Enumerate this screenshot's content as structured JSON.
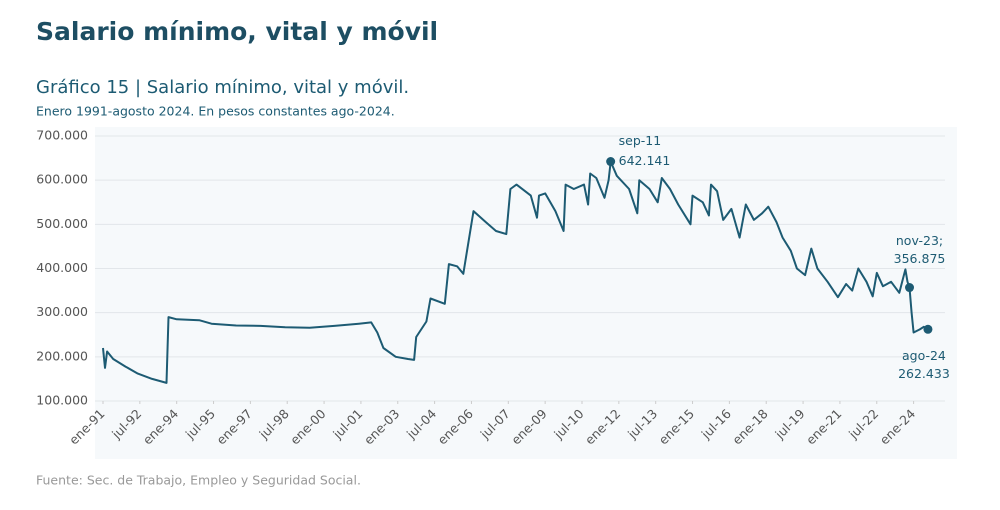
{
  "heading": "Salario mínimo, vital y móvil",
  "chart_data": {
    "type": "line",
    "title": "Gráfico 15 | Salario mínimo, vital y móvil.",
    "subtitle": "Enero 1991-agosto 2024. En pesos constantes ago-2024.",
    "source": "Fuente: Sec. de Trabajo, Empleo y Seguridad Social.",
    "color": "#1d5b73",
    "grid": true,
    "x": [
      "1991-01",
      "1991-02",
      "1991-03",
      "1991-06",
      "1991-12",
      "1992-06",
      "1993-01",
      "1993-08",
      "1993-09",
      "1994-01",
      "1994-12",
      "1995-06",
      "1996-06",
      "1997-06",
      "1998-06",
      "1999-06",
      "2000-06",
      "2001-06",
      "2001-12",
      "2002-03",
      "2002-06",
      "2002-12",
      "2003-06",
      "2003-09",
      "2003-10",
      "2004-03",
      "2004-05",
      "2004-12",
      "2005-02",
      "2005-06",
      "2005-09",
      "2006-02",
      "2006-08",
      "2007-01",
      "2007-06",
      "2007-08",
      "2007-11",
      "2008-06",
      "2008-09",
      "2008-10",
      "2009-01",
      "2009-06",
      "2009-10",
      "2009-11",
      "2010-03",
      "2010-08",
      "2010-10",
      "2010-11",
      "2011-02",
      "2011-06",
      "2011-08",
      "2011-09",
      "2011-12",
      "2012-06",
      "2012-10",
      "2012-11",
      "2013-04",
      "2013-08",
      "2013-10",
      "2014-02",
      "2014-06",
      "2014-12",
      "2015-01",
      "2015-06",
      "2015-09",
      "2015-10",
      "2016-01",
      "2016-04",
      "2016-08",
      "2016-12",
      "2017-03",
      "2017-07",
      "2017-11",
      "2018-02",
      "2018-06",
      "2018-09",
      "2019-01",
      "2019-04",
      "2019-08",
      "2019-11",
      "2020-02",
      "2020-07",
      "2020-12",
      "2021-04",
      "2021-07",
      "2021-10",
      "2022-02",
      "2022-05",
      "2022-07",
      "2022-10",
      "2023-02",
      "2023-06",
      "2023-09",
      "2023-10",
      "2023-11",
      "2023-12",
      "2024-01",
      "2024-04",
      "2024-06",
      "2024-08"
    ],
    "values": [
      220000,
      175000,
      212000,
      195000,
      178000,
      162000,
      150000,
      141000,
      290000,
      285000,
      283000,
      275000,
      271000,
      270000,
      267000,
      266000,
      270000,
      275000,
      278000,
      255000,
      220000,
      200000,
      195000,
      193000,
      245000,
      280000,
      332000,
      320000,
      410000,
      405000,
      388000,
      530000,
      505000,
      485000,
      478000,
      580000,
      590000,
      565000,
      515000,
      565000,
      570000,
      530000,
      485000,
      590000,
      580000,
      590000,
      545000,
      615000,
      605000,
      560000,
      600000,
      642141,
      610000,
      580000,
      525000,
      600000,
      580000,
      550000,
      605000,
      580000,
      545000,
      500000,
      565000,
      550000,
      520000,
      590000,
      575000,
      510000,
      535000,
      470000,
      545000,
      510000,
      525000,
      540000,
      505000,
      470000,
      440000,
      400000,
      385000,
      445000,
      400000,
      370000,
      335000,
      365000,
      350000,
      400000,
      370000,
      337000,
      390000,
      360000,
      370000,
      345000,
      398000,
      370000,
      356875,
      300000,
      255000,
      262000,
      268000,
      262433
    ],
    "ylim": [
      100000,
      700000
    ],
    "yticks": [
      {
        "value": 100000,
        "label": "100.000"
      },
      {
        "value": 200000,
        "label": "200.000"
      },
      {
        "value": 300000,
        "label": "300.000"
      },
      {
        "value": 400000,
        "label": "400.000"
      },
      {
        "value": 500000,
        "label": "500.000"
      },
      {
        "value": 600000,
        "label": "600.000"
      },
      {
        "value": 700000,
        "label": "700.000"
      }
    ],
    "xticks": [
      {
        "value": "1991-01",
        "label": "ene-91"
      },
      {
        "value": "1992-07",
        "label": "jul-92"
      },
      {
        "value": "1994-01",
        "label": "ene-94"
      },
      {
        "value": "1995-07",
        "label": "jul-95"
      },
      {
        "value": "1997-01",
        "label": "ene-97"
      },
      {
        "value": "1998-07",
        "label": "jul-98"
      },
      {
        "value": "2000-01",
        "label": "ene-00"
      },
      {
        "value": "2001-07",
        "label": "jul-01"
      },
      {
        "value": "2003-01",
        "label": "ene-03"
      },
      {
        "value": "2004-07",
        "label": "jul-04"
      },
      {
        "value": "2006-01",
        "label": "ene-06"
      },
      {
        "value": "2007-07",
        "label": "jul-07"
      },
      {
        "value": "2009-01",
        "label": "ene-09"
      },
      {
        "value": "2010-07",
        "label": "jul-10"
      },
      {
        "value": "2012-01",
        "label": "ene-12"
      },
      {
        "value": "2013-07",
        "label": "jul-13"
      },
      {
        "value": "2015-01",
        "label": "ene-15"
      },
      {
        "value": "2016-07",
        "label": "jul-16"
      },
      {
        "value": "2018-01",
        "label": "ene-18"
      },
      {
        "value": "2019-07",
        "label": "jul-19"
      },
      {
        "value": "2021-01",
        "label": "ene-21"
      },
      {
        "value": "2022-07",
        "label": "jul-22"
      },
      {
        "value": "2024-01",
        "label": "ene-24"
      }
    ],
    "annotations": [
      {
        "x": "2011-09",
        "value": 642141,
        "text": "sep-11",
        "value_label": "642.141"
      },
      {
        "x": "2023-11",
        "value": 356875,
        "text": "nov-23;",
        "value_label": "356.875"
      },
      {
        "x": "2024-08",
        "value": 262433,
        "text": "ago-24",
        "value_label": "262.433"
      }
    ]
  }
}
